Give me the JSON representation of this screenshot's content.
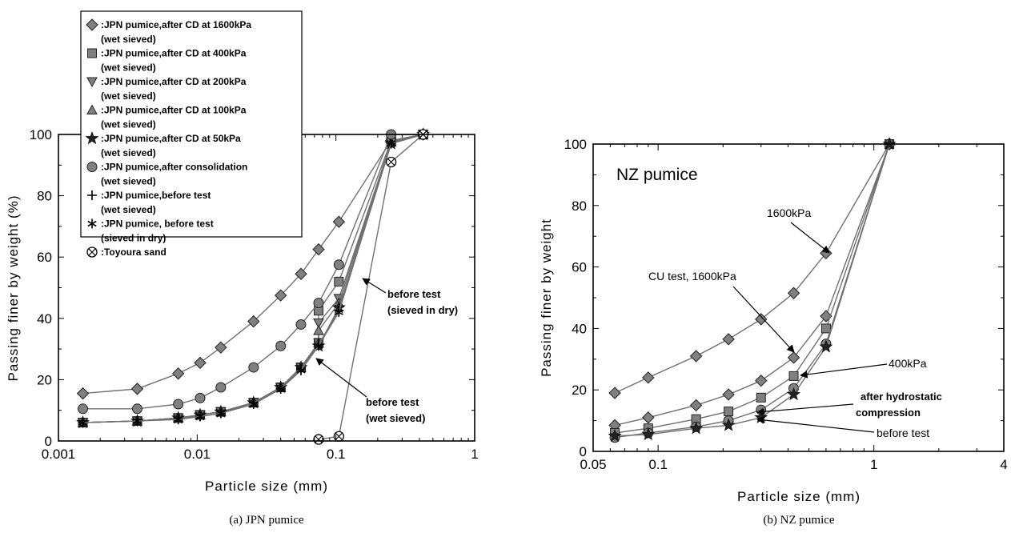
{
  "chart_data": [
    {
      "type": "line",
      "caption": "(a)  JPN pumice",
      "xlabel": "Particle size (mm)",
      "ylabel": "Passing finer by weight (%)",
      "xscale": "log",
      "xlim": [
        0.001,
        1
      ],
      "ylim": [
        0,
        100
      ],
      "xticks": [
        {
          "v": 0.001,
          "label": "0.001"
        },
        {
          "v": 0.01,
          "label": "0.01"
        },
        {
          "v": 0.1,
          "label": "0.1"
        },
        {
          "v": 1,
          "label": "1"
        }
      ],
      "yticks": [
        {
          "v": 0,
          "label": "0"
        },
        {
          "v": 20,
          "label": "20"
        },
        {
          "v": 40,
          "label": "40"
        },
        {
          "v": 60,
          "label": "60"
        },
        {
          "v": 80,
          "label": "80"
        },
        {
          "v": 100,
          "label": "100"
        }
      ],
      "legend_position": "top-left",
      "series": [
        {
          "name": ":JPN pumice,after CD at 1600kPa",
          "name2": "(wet sieved)",
          "marker": "diamond",
          "points": [
            [
              0.0015,
              15.5
            ],
            [
              0.0037,
              17
            ],
            [
              0.0073,
              22
            ],
            [
              0.0105,
              25.5
            ],
            [
              0.0148,
              30.5
            ],
            [
              0.0255,
              39
            ],
            [
              0.04,
              47.5
            ],
            [
              0.056,
              54.5
            ],
            [
              0.075,
              62.5
            ],
            [
              0.105,
              71.5
            ],
            [
              0.25,
              98
            ],
            [
              0.425,
              100
            ]
          ]
        },
        {
          "name": ":JPN pumice,after CD at 400kPa",
          "name2": "(wet sieved)",
          "marker": "square",
          "points": [
            [
              0.0015,
              6
            ],
            [
              0.0037,
              6.5
            ],
            [
              0.0073,
              7.5
            ],
            [
              0.0105,
              8.5
            ],
            [
              0.0148,
              9.5
            ],
            [
              0.0255,
              12.5
            ],
            [
              0.04,
              17.5
            ],
            [
              0.056,
              24
            ],
            [
              0.075,
              32
            ],
            [
              0.075,
              42.5
            ],
            [
              0.105,
              52
            ],
            [
              0.25,
              98
            ],
            [
              0.425,
              100
            ]
          ]
        },
        {
          "name": ":JPN pumice,after CD at 200kPa",
          "name2": "(wet sieved)",
          "marker": "triangle-down",
          "points": [
            [
              0.0015,
              6
            ],
            [
              0.0037,
              6.5
            ],
            [
              0.0073,
              7.5
            ],
            [
              0.0105,
              8.5
            ],
            [
              0.0148,
              9.5
            ],
            [
              0.0255,
              12.5
            ],
            [
              0.04,
              17.5
            ],
            [
              0.056,
              24
            ],
            [
              0.075,
              32
            ],
            [
              0.075,
              38.5
            ],
            [
              0.105,
              46.5
            ],
            [
              0.25,
              97.5
            ],
            [
              0.425,
              100
            ]
          ]
        },
        {
          "name": ":JPN pumice,after CD at 100kPa",
          "name2": "(wet sieved)",
          "marker": "triangle-up",
          "points": [
            [
              0.0015,
              6
            ],
            [
              0.0037,
              6.5
            ],
            [
              0.0073,
              7.5
            ],
            [
              0.0105,
              8.5
            ],
            [
              0.0148,
              9.5
            ],
            [
              0.0255,
              12.5
            ],
            [
              0.04,
              17.5
            ],
            [
              0.056,
              24
            ],
            [
              0.075,
              32
            ],
            [
              0.075,
              36
            ],
            [
              0.105,
              45
            ],
            [
              0.25,
              97.5
            ],
            [
              0.425,
              100
            ]
          ]
        },
        {
          "name": ":JPN pumice,after CD at 50kPa",
          "name2": "(wet sieved)",
          "marker": "star",
          "points": [
            [
              0.0015,
              6
            ],
            [
              0.0037,
              6.5
            ],
            [
              0.0073,
              7.5
            ],
            [
              0.0105,
              8.5
            ],
            [
              0.0148,
              9.5
            ],
            [
              0.0255,
              12.5
            ],
            [
              0.04,
              17.5
            ],
            [
              0.056,
              24
            ],
            [
              0.075,
              31
            ],
            [
              0.105,
              43.5
            ],
            [
              0.25,
              97
            ],
            [
              0.425,
              100
            ]
          ]
        },
        {
          "name": ":JPN pumice,after consolidation",
          "name2": "(wet sieved)",
          "marker": "circle",
          "points": [
            [
              0.0015,
              10.5
            ],
            [
              0.0037,
              10.5
            ],
            [
              0.0073,
              12
            ],
            [
              0.0105,
              14
            ],
            [
              0.0148,
              17.5
            ],
            [
              0.0255,
              24
            ],
            [
              0.04,
              31
            ],
            [
              0.056,
              38
            ],
            [
              0.075,
              45
            ],
            [
              0.105,
              57.5
            ],
            [
              0.25,
              100
            ],
            [
              0.425,
              100
            ]
          ]
        },
        {
          "name": ":JPN pumice,before test",
          "name2": "(wet sieved)",
          "marker": "plus",
          "points": [
            [
              0.0015,
              6
            ],
            [
              0.0037,
              6.5
            ],
            [
              0.0073,
              7.5
            ],
            [
              0.0105,
              8
            ],
            [
              0.0148,
              9
            ],
            [
              0.0255,
              12.5
            ],
            [
              0.04,
              17
            ],
            [
              0.056,
              23.5
            ],
            [
              0.075,
              31.5
            ],
            [
              0.105,
              42.5
            ],
            [
              0.25,
              97
            ],
            [
              0.425,
              100
            ]
          ]
        },
        {
          "name": ":JPN pumice, before test",
          "name2": "(sieved in dry)",
          "marker": "asterisk",
          "points": [
            [
              0.0015,
              6
            ],
            [
              0.0037,
              6.5
            ],
            [
              0.0073,
              7
            ],
            [
              0.0105,
              8
            ],
            [
              0.0148,
              9
            ],
            [
              0.0255,
              12
            ],
            [
              0.04,
              17
            ],
            [
              0.056,
              23
            ],
            [
              0.075,
              31
            ],
            [
              0.105,
              42
            ],
            [
              0.25,
              97
            ],
            [
              0.425,
              100
            ]
          ]
        },
        {
          "name": ":Toyoura sand",
          "marker": "circle-x",
          "points": [
            [
              0.075,
              0.5
            ],
            [
              0.105,
              1.5
            ],
            [
              0.25,
              91
            ],
            [
              0.425,
              100
            ]
          ]
        }
      ],
      "annotations": [
        {
          "text": "before test",
          "text2": "(sieved in dry)"
        },
        {
          "text": "before test",
          "text2": "(wet sieved)"
        }
      ]
    },
    {
      "type": "line",
      "caption": "(b) NZ pumice",
      "panel_title": "NZ pumice",
      "xlabel": "Particle size (mm)",
      "ylabel": "Passing finer by weight",
      "xscale": "log",
      "xlim": [
        0.05,
        4
      ],
      "ylim": [
        0,
        100
      ],
      "xticks": [
        {
          "v": 0.05,
          "label": "0.05"
        },
        {
          "v": 0.1,
          "label": "0.1"
        },
        {
          "v": 1,
          "label": "1"
        },
        {
          "v": 4,
          "label": "4"
        }
      ],
      "yticks": [
        {
          "v": 0,
          "label": "0"
        },
        {
          "v": 20,
          "label": "20"
        },
        {
          "v": 40,
          "label": "40"
        },
        {
          "v": 60,
          "label": "60"
        },
        {
          "v": 80,
          "label": "80"
        },
        {
          "v": 100,
          "label": "100"
        }
      ],
      "series": [
        {
          "name": "1600kPa",
          "marker": "diamond",
          "points": [
            [
              0.063,
              19
            ],
            [
              0.09,
              24
            ],
            [
              0.15,
              31
            ],
            [
              0.212,
              36.5
            ],
            [
              0.3,
              43
            ],
            [
              0.425,
              51.5
            ],
            [
              0.6,
              64.5
            ],
            [
              1.18,
              100
            ]
          ]
        },
        {
          "name": "CU test, 1600kPa",
          "marker": "diamond",
          "points": [
            [
              0.063,
              8.5
            ],
            [
              0.09,
              11
            ],
            [
              0.15,
              15
            ],
            [
              0.212,
              18.5
            ],
            [
              0.3,
              23
            ],
            [
              0.425,
              30.5
            ],
            [
              0.6,
              44
            ],
            [
              1.18,
              100
            ]
          ]
        },
        {
          "name": "400kPa",
          "marker": "square",
          "points": [
            [
              0.063,
              6
            ],
            [
              0.09,
              7.5
            ],
            [
              0.15,
              10.5
            ],
            [
              0.212,
              13
            ],
            [
              0.3,
              17.5
            ],
            [
              0.425,
              24.5
            ],
            [
              0.6,
              40
            ],
            [
              1.18,
              100
            ]
          ]
        },
        {
          "name": "after hydrostatic compression",
          "marker": "circle",
          "points": [
            [
              0.063,
              4.5
            ],
            [
              0.09,
              6
            ],
            [
              0.15,
              8
            ],
            [
              0.212,
              10
            ],
            [
              0.3,
              13.5
            ],
            [
              0.425,
              20.5
            ],
            [
              0.6,
              35
            ],
            [
              1.18,
              100
            ]
          ]
        },
        {
          "name": "before test",
          "marker": "star",
          "points": [
            [
              0.063,
              5
            ],
            [
              0.09,
              5.5
            ],
            [
              0.15,
              7.5
            ],
            [
              0.212,
              8.5
            ],
            [
              0.3,
              11
            ],
            [
              0.425,
              18.5
            ],
            [
              0.6,
              34
            ],
            [
              1.18,
              100
            ]
          ]
        }
      ],
      "annotations": [
        {
          "text": "1600kPa"
        },
        {
          "text": "CU test, 1600kPa"
        },
        {
          "text": "400kPa"
        },
        {
          "text": "after hydrostatic",
          "text2": "compression"
        },
        {
          "text": "before test"
        }
      ]
    }
  ]
}
